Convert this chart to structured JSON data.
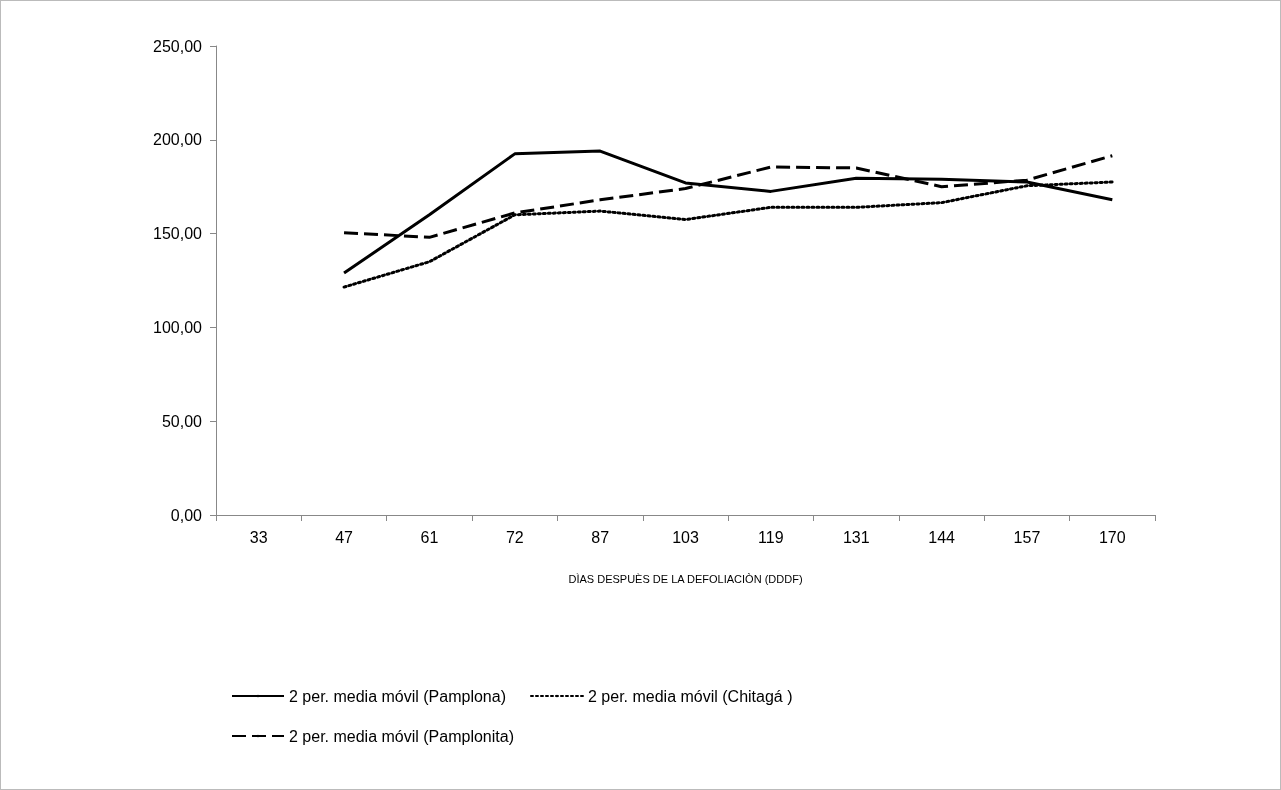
{
  "chart_data": {
    "type": "line",
    "xlabel": "DÌAS DESPUÈS DE LA DEFOLIACIÒN (DDDF)",
    "categories": [
      "33",
      "47",
      "61",
      "72",
      "87",
      "103",
      "119",
      "131",
      "144",
      "157",
      "170"
    ],
    "series": [
      {
        "name": "2 per. media móvil (Pamplona)",
        "color": "#000000",
        "line_style": "solid",
        "values": [
          null,
          129,
          160,
          192.5,
          194,
          177,
          172.5,
          179.5,
          179,
          177.5,
          168
        ]
      },
      {
        "name": "2 per. media móvil (Chitagá )",
        "color": "#000000",
        "line_style": "dotted",
        "values": [
          null,
          121.5,
          135,
          160,
          162,
          157.5,
          164,
          164,
          166.5,
          175.5,
          177.5
        ]
      },
      {
        "name": "2 per. media móvil (Pamplonita)",
        "color": "#000000",
        "line_style": "dashed",
        "values": [
          null,
          150.5,
          148,
          161,
          168,
          174,
          185.5,
          185,
          175,
          178.5,
          191.5
        ]
      }
    ],
    "ylim": [
      0,
      250
    ],
    "yticks": [
      {
        "value": 0,
        "label": "0,00"
      },
      {
        "value": 50,
        "label": "50,00"
      },
      {
        "value": 100,
        "label": "100,00"
      },
      {
        "value": 150,
        "label": "150,00"
      },
      {
        "value": 200,
        "label": "200,00"
      },
      {
        "value": 250,
        "label": "250,00"
      }
    ],
    "grid": false,
    "legend": "bottom",
    "marker": "none"
  }
}
